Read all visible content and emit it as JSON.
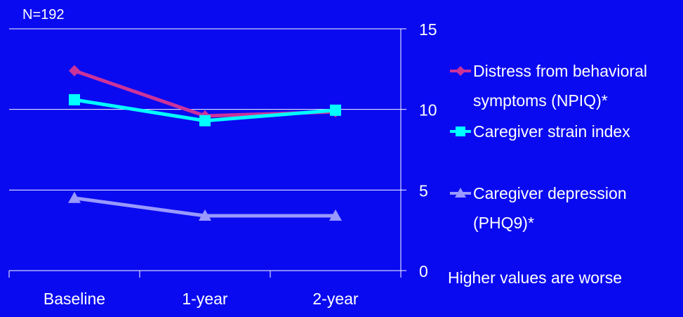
{
  "chart_data": {
    "type": "line",
    "annotation": "N=192",
    "categories": [
      "Baseline",
      "1-year",
      "2-year"
    ],
    "ylim": [
      0,
      15
    ],
    "yticks": [
      "0",
      "5",
      "10",
      "15"
    ],
    "y_axis_side": "right",
    "grid": true,
    "legend_position": "right",
    "note": "Higher values are worse",
    "series": [
      {
        "name_line1": "Distress from behavioral",
        "name_line2": "symptoms (NPIQ)*",
        "values": [
          12.4,
          9.6,
          9.85
        ],
        "color": "#cc3399",
        "marker": "diamond"
      },
      {
        "name_line1": "Caregiver strain index",
        "name_line2": "",
        "values": [
          10.6,
          9.3,
          9.95
        ],
        "color": "#00ffff",
        "marker": "square"
      },
      {
        "name_line1": "Caregiver depression",
        "name_line2": "(PHQ9)*",
        "values": [
          4.5,
          3.4,
          3.4
        ],
        "color": "#9999ff",
        "marker": "triangle"
      }
    ]
  }
}
